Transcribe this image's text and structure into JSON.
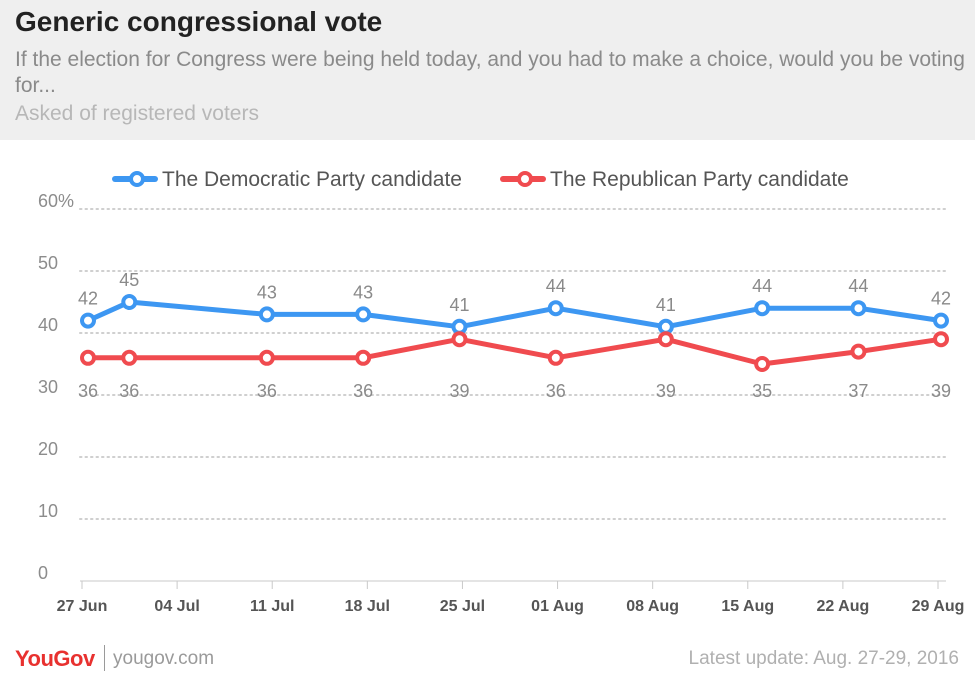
{
  "header": {
    "title": "Generic congressional vote",
    "subtitle": "If the election for Congress were being held today, and you had to make a choice, would you be voting for...",
    "note": "Asked of registered voters"
  },
  "footer": {
    "brand": "YouGov",
    "site": "yougov.com",
    "update": "Latest update: Aug. 27-29, 2016"
  },
  "chart_data": {
    "type": "line",
    "categories": [
      "27 Jun",
      "04 Jul",
      "11 Jul",
      "18 Jul",
      "25 Jul",
      "01 Aug",
      "08 Aug",
      "15 Aug",
      "22 Aug",
      "29 Aug"
    ],
    "x_dates": [
      "2016-06-27",
      "2016-06-30",
      "2016-07-10",
      "2016-07-17",
      "2016-07-24",
      "2016-07-31",
      "2016-08-08",
      "2016-08-15",
      "2016-08-22",
      "2016-08-28"
    ],
    "series": [
      {
        "name": "The Democratic Party candidate",
        "color": "#3d97f2",
        "values": [
          42,
          45,
          43,
          43,
          41,
          44,
          41,
          44,
          44,
          42
        ]
      },
      {
        "name": "The Republican Party candidate",
        "color": "#f04b4f",
        "values": [
          36,
          36,
          36,
          36,
          39,
          36,
          39,
          35,
          37,
          39
        ]
      }
    ],
    "y_ticks": [
      "0",
      "10",
      "20",
      "30",
      "40",
      "50",
      "60%"
    ],
    "ylim": [
      0,
      60
    ],
    "grid": true,
    "legend_position": "top-center"
  }
}
